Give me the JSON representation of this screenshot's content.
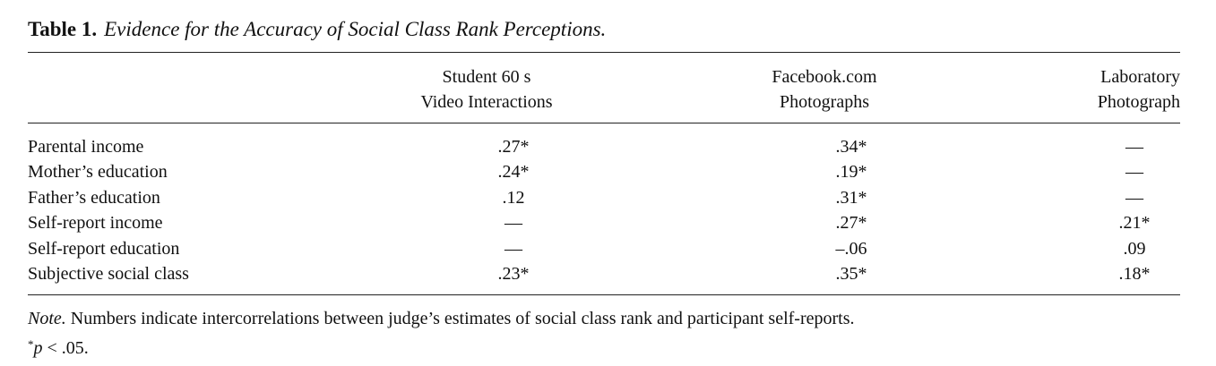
{
  "caption": {
    "label": "Table 1.",
    "title": "Evidence for the Accuracy of Social Class Rank Perceptions."
  },
  "columns": [
    {
      "line1": "Student 60 s",
      "line2": "Video Interactions"
    },
    {
      "line1": "Facebook.com",
      "line2": "Photographs"
    },
    {
      "line1": "Laboratory",
      "line2": "Photograph"
    }
  ],
  "rows": [
    {
      "label": "Parental income",
      "values": [
        ".27*",
        ".34*",
        "—"
      ]
    },
    {
      "label": "Mother’s education",
      "values": [
        ".24*",
        ".19*",
        "—"
      ]
    },
    {
      "label": "Father’s education",
      "values": [
        ".12",
        ".31*",
        "—"
      ]
    },
    {
      "label": "Self-report income",
      "values": [
        "—",
        ".27*",
        ".21*"
      ]
    },
    {
      "label": "Self-report education",
      "values": [
        "—",
        "–.06",
        ".09"
      ]
    },
    {
      "label": "Subjective social class",
      "values": [
        ".23*",
        ".35*",
        ".18*"
      ]
    }
  ],
  "note": {
    "label": "Note.",
    "text": "Numbers indicate intercorrelations between judge’s estimates of social class rank and participant self-reports."
  },
  "footnote": {
    "marker": "*",
    "p": "p",
    "text": "< .05."
  }
}
